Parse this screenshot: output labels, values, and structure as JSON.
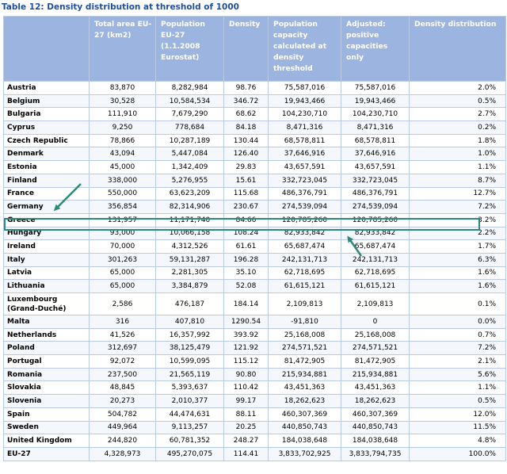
{
  "title": "Table 12: Density distribution at threshold of 1000",
  "headers": [
    "",
    "Total area EU-27 (km2)",
    "Population EU-27 (1.1.2008 Eurostat)",
    "Density",
    "Population capacity calculated at density threshold",
    "Adjusted: positive capacities only",
    "Density distribution"
  ],
  "rows": [
    {
      "country": "Austria",
      "area": "83,870",
      "population": "8,282,984",
      "density": "98.76",
      "capacity": "75,587,016",
      "adjusted": "75,587,016",
      "distribution": "2.0%"
    },
    {
      "country": "Belgium",
      "area": "30,528",
      "population": "10,584,534",
      "density": "346.72",
      "capacity": "19,943,466",
      "adjusted": "19,943,466",
      "distribution": "0.5%"
    },
    {
      "country": "Bulgaria",
      "area": "111,910",
      "population": "7,679,290",
      "density": "68.62",
      "capacity": "104,230,710",
      "adjusted": "104,230,710",
      "distribution": "2.7%"
    },
    {
      "country": "Cyprus",
      "area": "9,250",
      "population": "778,684",
      "density": "84.18",
      "capacity": "8,471,316",
      "adjusted": "8,471,316",
      "distribution": "0.2%"
    },
    {
      "country": "Czech Republic",
      "area": "78,866",
      "population": "10,287,189",
      "density": "130.44",
      "capacity": "68,578,811",
      "adjusted": "68,578,811",
      "distribution": "1.8%"
    },
    {
      "country": "Denmark",
      "area": "43,094",
      "population": "5,447,084",
      "density": "126.40",
      "capacity": "37,646,916",
      "adjusted": "37,646,916",
      "distribution": "1.0%"
    },
    {
      "country": "Estonia",
      "area": "45,000",
      "population": "1,342,409",
      "density": "29.83",
      "capacity": "43,657,591",
      "adjusted": "43,657,591",
      "distribution": "1.1%"
    },
    {
      "country": "Finland",
      "area": "338,000",
      "population": "5,276,955",
      "density": "15.61",
      "capacity": "332,723,045",
      "adjusted": "332,723,045",
      "distribution": "8.7%"
    },
    {
      "country": "France",
      "area": "550,000",
      "population": "63,623,209",
      "density": "115.68",
      "capacity": "486,376,791",
      "adjusted": "486,376,791",
      "distribution": "12.7%"
    },
    {
      "country": "Germany",
      "area": "356,854",
      "population": "82,314,906",
      "density": "230.67",
      "capacity": "274,539,094",
      "adjusted": "274,539,094",
      "distribution": "7.2%"
    },
    {
      "country": "Greece",
      "area": "131,957",
      "population": "11,171,740",
      "density": "84.66",
      "capacity": "120,785,260",
      "adjusted": "120,785,260",
      "distribution": "3.2%"
    },
    {
      "country": "Hungary",
      "area": "93,000",
      "population": "10,066,158",
      "density": "108.24",
      "capacity": "82,933,842",
      "adjusted": "82,933,842",
      "distribution": "2.2%"
    },
    {
      "country": "Ireland",
      "area": "70,000",
      "population": "4,312,526",
      "density": "61.61",
      "capacity": "65,687,474",
      "adjusted": "65,687,474",
      "distribution": "1.7%"
    },
    {
      "country": "Italy",
      "area": "301,263",
      "population": "59,131,287",
      "density": "196.28",
      "capacity": "242,131,713",
      "adjusted": "242,131,713",
      "distribution": "6.3%"
    },
    {
      "country": "Latvia",
      "area": "65,000",
      "population": "2,281,305",
      "density": "35.10",
      "capacity": "62,718,695",
      "adjusted": "62,718,695",
      "distribution": "1.6%"
    },
    {
      "country": "Lithuania",
      "area": "65,000",
      "population": "3,384,879",
      "density": "52.08",
      "capacity": "61,615,121",
      "adjusted": "61,615,121",
      "distribution": "1.6%"
    },
    {
      "country": "Luxembourg (Grand-Duché)",
      "area": "2,586",
      "population": "476,187",
      "density": "184.14",
      "capacity": "2,109,813",
      "adjusted": "2,109,813",
      "distribution": "0.1%"
    },
    {
      "country": "Malta",
      "area": "316",
      "population": "407,810",
      "density": "1290.54",
      "capacity": "-91,810",
      "adjusted": "0",
      "distribution": "0.0%"
    },
    {
      "country": "Netherlands",
      "area": "41,526",
      "population": "16,357,992",
      "density": "393.92",
      "capacity": "25,168,008",
      "adjusted": "25,168,008",
      "distribution": "0.7%"
    },
    {
      "country": "Poland",
      "area": "312,697",
      "population": "38,125,479",
      "density": "121.92",
      "capacity": "274,571,521",
      "adjusted": "274,571,521",
      "distribution": "7.2%"
    },
    {
      "country": "Portugal",
      "area": "92,072",
      "population": "10,599,095",
      "density": "115.12",
      "capacity": "81,472,905",
      "adjusted": "81,472,905",
      "distribution": "2.1%"
    },
    {
      "country": "Romania",
      "area": "237,500",
      "population": "21,565,119",
      "density": "90.80",
      "capacity": "215,934,881",
      "adjusted": "215,934,881",
      "distribution": "5.6%"
    },
    {
      "country": "Slovakia",
      "area": "48,845",
      "population": "5,393,637",
      "density": "110.42",
      "capacity": "43,451,363",
      "adjusted": "43,451,363",
      "distribution": "1.1%"
    },
    {
      "country": "Slovenia",
      "area": "20,273",
      "population": "2,010,377",
      "density": "99.17",
      "capacity": "18,262,623",
      "adjusted": "18,262,623",
      "distribution": "0.5%"
    },
    {
      "country": "Spain",
      "area": "504,782",
      "population": "44,474,631",
      "density": "88.11",
      "capacity": "460,307,369",
      "adjusted": "460,307,369",
      "distribution": "12.0%"
    },
    {
      "country": "Sweden",
      "area": "449,964",
      "population": "9,113,257",
      "density": "20.25",
      "capacity": "440,850,743",
      "adjusted": "440,850,743",
      "distribution": "11.5%"
    },
    {
      "country": "United Kingdom",
      "area": "244,820",
      "population": "60,781,352",
      "density": "248.27",
      "capacity": "184,038,648",
      "adjusted": "184,038,648",
      "distribution": "4.8%"
    },
    {
      "country": "EU-27",
      "area": "4,328,973",
      "population": "495,270,075",
      "density": "114.41",
      "capacity": "3,833,702,925",
      "adjusted": "3,833,794,735",
      "distribution": "100.0%"
    }
  ],
  "highlight": {
    "country": "Greece"
  },
  "annotation_color": "#2e8a78",
  "header_color": "#9cb4e0",
  "title_color": "#1f4e9c"
}
